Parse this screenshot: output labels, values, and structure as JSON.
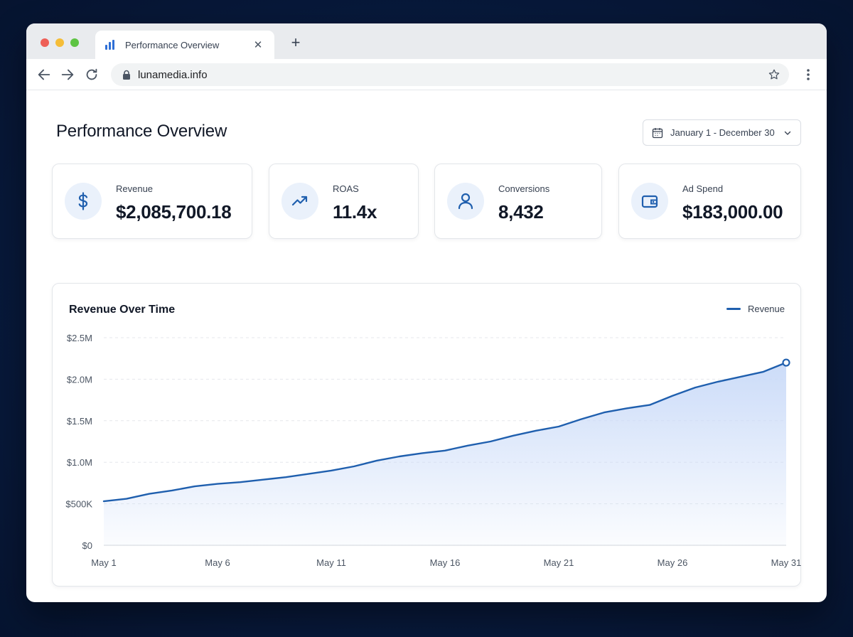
{
  "browser": {
    "tab_title": "Performance Overview",
    "url": "lunamedia.info"
  },
  "page": {
    "title": "Performance Overview",
    "date_range": "January 1 - December 30"
  },
  "kpis": [
    {
      "label": "Revenue",
      "value": "$2,085,700.18",
      "icon": "dollar-icon"
    },
    {
      "label": "ROAS",
      "value": "11.4x",
      "icon": "trending-up-icon"
    },
    {
      "label": "Conversions",
      "value": "8,432",
      "icon": "user-icon"
    },
    {
      "label": "Ad Spend",
      "value": "$183,000.00",
      "icon": "wallet-icon"
    }
  ],
  "colors": {
    "accent": "#1f5fae",
    "area_fill": "#c9daf8",
    "kpi_icon_bg": "#eaf1fb"
  },
  "chart": {
    "title": "Revenue Over Time",
    "legend": "Revenue"
  },
  "chart_data": {
    "type": "area",
    "title": "Revenue Over Time",
    "xlabel": "",
    "ylabel": "",
    "ylim": [
      0,
      2500000
    ],
    "y_ticks": [
      {
        "value": 0,
        "label": "$0"
      },
      {
        "value": 500000,
        "label": "$500K"
      },
      {
        "value": 1000000,
        "label": "$1.0M"
      },
      {
        "value": 1500000,
        "label": "$1.5M"
      },
      {
        "value": 2000000,
        "label": "$2.0M"
      },
      {
        "value": 2500000,
        "label": "$2.5M"
      }
    ],
    "x_ticks": [
      {
        "day": 1,
        "label": "May 1"
      },
      {
        "day": 6,
        "label": "May 6"
      },
      {
        "day": 11,
        "label": "May 11"
      },
      {
        "day": 16,
        "label": "May 16"
      },
      {
        "day": 21,
        "label": "May 21"
      },
      {
        "day": 26,
        "label": "May 26"
      },
      {
        "day": 31,
        "label": "May 31"
      }
    ],
    "grid": true,
    "legend_position": "top-right",
    "series": [
      {
        "name": "Revenue",
        "x": [
          1,
          2,
          3,
          4,
          5,
          6,
          7,
          8,
          9,
          10,
          11,
          12,
          13,
          14,
          15,
          16,
          17,
          18,
          19,
          20,
          21,
          22,
          23,
          24,
          25,
          26,
          27,
          28,
          29,
          30,
          31
        ],
        "values": [
          530000,
          560000,
          620000,
          660000,
          710000,
          740000,
          760000,
          790000,
          820000,
          860000,
          900000,
          950000,
          1020000,
          1070000,
          1110000,
          1140000,
          1200000,
          1250000,
          1320000,
          1380000,
          1430000,
          1520000,
          1600000,
          1650000,
          1690000,
          1800000,
          1900000,
          1970000,
          2030000,
          2090000,
          2200000
        ]
      }
    ]
  }
}
